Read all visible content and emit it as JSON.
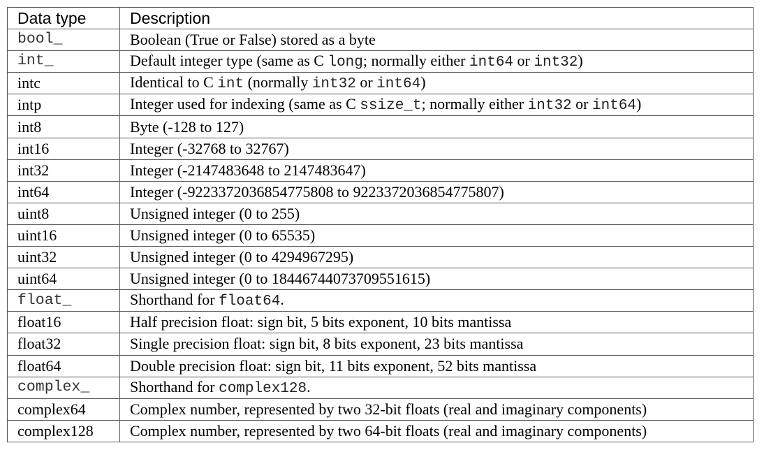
{
  "table": {
    "headers": [
      "Data type",
      "Description"
    ],
    "rows": [
      {
        "type": "bool_",
        "type_mono": true,
        "desc": [
          {
            "t": "Boolean (True or False) stored as a byte"
          }
        ]
      },
      {
        "type": "int_",
        "type_mono": true,
        "desc": [
          {
            "t": "Default integer type (same as C "
          },
          {
            "t": "long",
            "code": true
          },
          {
            "t": "; normally either "
          },
          {
            "t": "int64",
            "code": true
          },
          {
            "t": " or "
          },
          {
            "t": "int32",
            "code": true
          },
          {
            "t": ")"
          }
        ]
      },
      {
        "type": "intc",
        "type_mono": false,
        "desc": [
          {
            "t": "Identical to C "
          },
          {
            "t": "int",
            "code": true
          },
          {
            "t": " (normally "
          },
          {
            "t": "int32",
            "code": true
          },
          {
            "t": " or "
          },
          {
            "t": "int64",
            "code": true
          },
          {
            "t": ")"
          }
        ]
      },
      {
        "type": "intp",
        "type_mono": false,
        "desc": [
          {
            "t": "Integer used for indexing (same as C "
          },
          {
            "t": "ssize_t",
            "code": true
          },
          {
            "t": "; normally either "
          },
          {
            "t": "int32",
            "code": true
          },
          {
            "t": " or "
          },
          {
            "t": "int64",
            "code": true
          },
          {
            "t": ")"
          }
        ]
      },
      {
        "type": "int8",
        "type_mono": false,
        "desc": [
          {
            "t": "Byte (-128 to 127)"
          }
        ]
      },
      {
        "type": "int16",
        "type_mono": false,
        "desc": [
          {
            "t": "Integer (-32768 to 32767)"
          }
        ]
      },
      {
        "type": "int32",
        "type_mono": false,
        "desc": [
          {
            "t": "Integer (-2147483648 to 2147483647)"
          }
        ]
      },
      {
        "type": "int64",
        "type_mono": false,
        "desc": [
          {
            "t": "Integer (-9223372036854775808 to 9223372036854775807)"
          }
        ]
      },
      {
        "type": "uint8",
        "type_mono": false,
        "desc": [
          {
            "t": "Unsigned integer (0 to 255)"
          }
        ]
      },
      {
        "type": "uint16",
        "type_mono": false,
        "desc": [
          {
            "t": "Unsigned integer (0 to 65535)"
          }
        ]
      },
      {
        "type": "uint32",
        "type_mono": false,
        "desc": [
          {
            "t": "Unsigned integer (0 to 4294967295)"
          }
        ]
      },
      {
        "type": "uint64",
        "type_mono": false,
        "desc": [
          {
            "t": "Unsigned integer (0 to 18446744073709551615)"
          }
        ]
      },
      {
        "type": "float_",
        "type_mono": true,
        "desc": [
          {
            "t": "Shorthand for "
          },
          {
            "t": "float64",
            "code": true
          },
          {
            "t": "."
          }
        ]
      },
      {
        "type": "float16",
        "type_mono": false,
        "desc": [
          {
            "t": "Half precision float: sign bit, 5 bits exponent, 10 bits mantissa"
          }
        ]
      },
      {
        "type": "float32",
        "type_mono": false,
        "desc": [
          {
            "t": "Single precision float: sign bit, 8 bits exponent, 23 bits mantissa"
          }
        ]
      },
      {
        "type": "float64",
        "type_mono": false,
        "desc": [
          {
            "t": "Double precision float: sign bit, 11 bits exponent, 52 bits mantissa"
          }
        ]
      },
      {
        "type": "complex_",
        "type_mono": true,
        "desc": [
          {
            "t": "Shorthand for "
          },
          {
            "t": "complex128",
            "code": true
          },
          {
            "t": "."
          }
        ]
      },
      {
        "type": "complex64",
        "type_mono": false,
        "desc": [
          {
            "t": "Complex number, represented by two 32-bit floats (real and imaginary components)"
          }
        ]
      },
      {
        "type": "complex128",
        "type_mono": false,
        "desc": [
          {
            "t": "Complex number, represented by two 64-bit floats (real and imaginary components)"
          }
        ]
      }
    ]
  }
}
